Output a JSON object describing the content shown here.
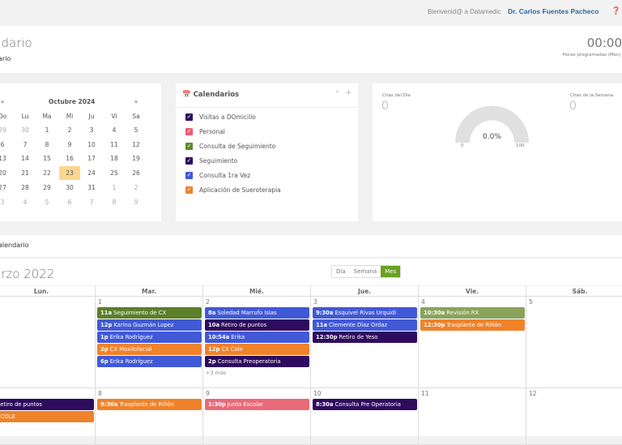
{
  "header": {
    "welcome": "Bienvenid@ a Datamedic",
    "user": "Dr. Carlos Fuentes Pacheco",
    "help_icon": "question-circle-icon"
  },
  "page": {
    "title": "ndario",
    "subtitle": "ario",
    "hours": "00:00",
    "hours_label": "Horas programadas (Mes)"
  },
  "mini_calendar": {
    "prev": "«",
    "next": "»",
    "title": "Octubre 2024",
    "days": [
      "Do",
      "Lu",
      "Ma",
      "Mi",
      "Ju",
      "Vi",
      "Sa"
    ],
    "weeks": [
      [
        "29",
        "30",
        "1",
        "2",
        "3",
        "4",
        "5"
      ],
      [
        "6",
        "7",
        "8",
        "9",
        "10",
        "11",
        "12"
      ],
      [
        "13",
        "14",
        "15",
        "16",
        "17",
        "18",
        "19"
      ],
      [
        "20",
        "21",
        "22",
        "23",
        "24",
        "25",
        "26"
      ],
      [
        "27",
        "28",
        "29",
        "30",
        "31",
        "1",
        "2"
      ],
      [
        "3",
        "4",
        "5",
        "6",
        "7",
        "8",
        "9"
      ]
    ],
    "today": "23"
  },
  "calendars": {
    "title": "Calendarios",
    "icon": "calendar-icon",
    "items": [
      {
        "label": "Visitas a DOmicilio",
        "color": "#2e0b5e"
      },
      {
        "label": "Personal",
        "color": "#ea5c78"
      },
      {
        "label": "Consulta de Seguimiento",
        "color": "#5b8a2a"
      },
      {
        "label": "Seguimiento",
        "color": "#2e0b5e"
      },
      {
        "label": "Consulta 1ra Vez",
        "color": "#4159d6"
      },
      {
        "label": "Aplicación de Sueroterapia",
        "color": "#f0822a"
      }
    ]
  },
  "stats": {
    "day_label": "Citas del Día",
    "day_value": "0",
    "week_label": "Citas de la Semana",
    "week_value": "0",
    "gauge_value": "0.0%",
    "gauge_percent": 0,
    "gauge_min": "0",
    "gauge_max": "100"
  },
  "section": {
    "title": "alendario"
  },
  "calendar": {
    "month": "arzo 2022",
    "views": [
      "Día",
      "Semana",
      "Mes"
    ],
    "active_view": "Mes",
    "day_headers": [
      "Lun.",
      "Mar.",
      "Mié.",
      "Jue.",
      "Vie.",
      "Sáb."
    ],
    "week1": {
      "days": [
        "",
        "1",
        "2",
        "3",
        "4",
        "5"
      ],
      "more": "+3 más"
    },
    "week2": {
      "days": [
        "",
        "8",
        "9",
        "10",
        "11",
        "12"
      ]
    },
    "events": [
      {
        "time": "11a",
        "title": "Seguimiento de CX",
        "color": "#5b7f2a"
      },
      {
        "time": "12p",
        "title": "Karina Guzmán Lopez",
        "color": "#4159d6"
      },
      {
        "time": "1p",
        "title": "Erika Rodríguez",
        "color": "#4159d6"
      },
      {
        "time": "2p",
        "title": "CX Maxilofacial",
        "color": "#f0822a"
      },
      {
        "time": "6p",
        "title": "Erika Rodríguez",
        "color": "#4159d6"
      },
      {
        "time": "8a",
        "title": "Soledad Marrufo Islas",
        "color": "#4159d6"
      },
      {
        "time": "10a",
        "title": "Retiro de puntos",
        "color": "#2e0b5e"
      },
      {
        "time": "10:54a",
        "title": "Erika",
        "color": "#4159d6"
      },
      {
        "time": "12p",
        "title": "CX Cole",
        "color": "#f0822a"
      },
      {
        "time": "2p",
        "title": "Consulta Preoperatoria",
        "color": "#2e0b5e"
      },
      {
        "time": "9:30a",
        "title": "Esquivel Rivas Urquidi",
        "color": "#4159d6"
      },
      {
        "time": "11a",
        "title": "Clemente Díaz Ordaz",
        "color": "#4159d6"
      },
      {
        "time": "12:30p",
        "title": "Retiro de Yeso",
        "color": "#2e0b5e"
      },
      {
        "time": "10:30a",
        "title": "Revisión RX",
        "color": "#8aa35a"
      },
      {
        "time": "12:30p",
        "title": "Trasplante de Riñón",
        "color": "#f0822a"
      },
      {
        "time": "p",
        "title": "Retiro de puntos",
        "color": "#2e0b5e"
      },
      {
        "time": "",
        "title": "CX COLE",
        "color": "#f0822a"
      },
      {
        "time": "9:30a",
        "title": "Trasplante de Riñón",
        "color": "#f0822a"
      },
      {
        "time": "1:30p",
        "title": "Junta Escolar",
        "color": "#e86a78"
      },
      {
        "time": "8:30a",
        "title": "Consulta Pre Operatoria",
        "color": "#2e0b5e"
      }
    ]
  }
}
